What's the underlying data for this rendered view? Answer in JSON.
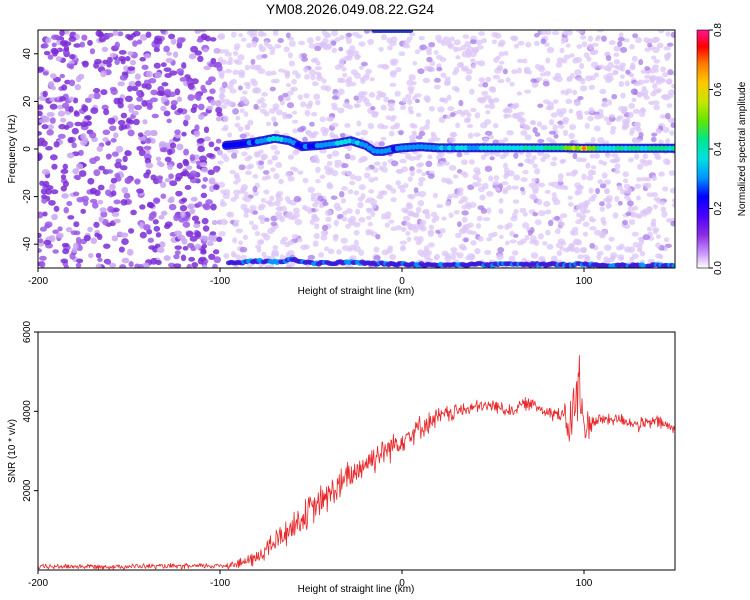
{
  "colors": {
    "background": "#ffffff",
    "axis": "#000000",
    "snr_line": "#e8282a",
    "colormap": [
      "#ffffff",
      "#cc99ff",
      "#8a2be2",
      "#4b00ff",
      "#0000ff",
      "#0096ff",
      "#00e0e0",
      "#00e68c",
      "#64e600",
      "#c8e600",
      "#ffc800",
      "#ff7800",
      "#ff0000",
      "#ff1493"
    ]
  },
  "chart_data": [
    {
      "type": "heatmap",
      "title": "YM08.2026.049.08.22.G24",
      "xlabel": "Height of straight line (km)",
      "ylabel": "Frequency (Hz)",
      "xlim": [
        -200,
        150
      ],
      "ylim": [
        -50,
        50
      ],
      "xticks": [
        "-200",
        "-100",
        "0",
        "100"
      ],
      "yticks": [
        "-40",
        "-20",
        "0",
        "20",
        "40"
      ],
      "colorbar": {
        "label": "Normalized spectral amplitude",
        "range": [
          0.0,
          0.8
        ],
        "ticks": [
          "0.0",
          "0.2",
          "0.4",
          "0.6",
          "0.8"
        ]
      },
      "signal_track": {
        "x": [
          -97,
          -90,
          -80,
          -70,
          -62,
          -55,
          -45,
          -35,
          -28,
          -20,
          -15,
          -10,
          -5,
          0,
          10,
          20,
          30,
          40,
          50,
          60,
          70,
          80,
          90,
          100,
          110,
          120,
          130,
          140,
          150
        ],
        "y": [
          1.5,
          2,
          3,
          4.5,
          3.5,
          1,
          1.5,
          2.5,
          3.5,
          1.5,
          -1,
          -1,
          0,
          0.5,
          1,
          0.5,
          0.5,
          0.5,
          0.5,
          0.5,
          0.5,
          0.5,
          0.5,
          0.3,
          0.3,
          0.3,
          0.3,
          0.3,
          0.3
        ],
        "amplitude": [
          0.25,
          0.25,
          0.3,
          0.35,
          0.3,
          0.25,
          0.3,
          0.35,
          0.35,
          0.3,
          0.3,
          0.3,
          0.3,
          0.3,
          0.3,
          0.35,
          0.35,
          0.35,
          0.35,
          0.38,
          0.38,
          0.4,
          0.45,
          0.55,
          0.4,
          0.4,
          0.4,
          0.4,
          0.4
        ]
      },
      "alias_track": {
        "x": [
          -95,
          -80,
          -70,
          -60,
          -50,
          -40,
          -30,
          0,
          20,
          40,
          60,
          80,
          100,
          120,
          150
        ],
        "y": [
          -48,
          -47,
          -47.5,
          -46.5,
          -48,
          -48,
          -47.5,
          -48.5,
          -48.5,
          -48.5,
          -48.5,
          -48.5,
          -48.5,
          -49,
          -49
        ]
      },
      "noise_transition_x": -100
    },
    {
      "type": "line",
      "xlabel": "Height of straight line (km)",
      "ylabel": "SNR (10 * v/v)",
      "xlim": [
        -200,
        150
      ],
      "ylim": [
        0,
        6000
      ],
      "xticks": [
        "-200",
        "-100",
        "0",
        "100"
      ],
      "yticks": [
        "2000",
        "4000",
        "6000"
      ],
      "series": [
        {
          "name": "SNR",
          "x": [
            -200,
            -180,
            -160,
            -140,
            -120,
            -100,
            -90,
            -80,
            -70,
            -60,
            -50,
            -40,
            -30,
            -20,
            -10,
            0,
            10,
            20,
            30,
            40,
            50,
            60,
            65,
            70,
            80,
            88,
            92,
            95,
            97,
            100,
            105,
            110,
            120,
            130,
            140,
            150
          ],
          "y": [
            80,
            90,
            85,
            95,
            90,
            110,
            150,
            300,
            700,
            1100,
            1500,
            1900,
            2300,
            2700,
            3000,
            3300,
            3600,
            3850,
            4000,
            4100,
            4150,
            4000,
            4150,
            4200,
            4000,
            3900,
            3600,
            4200,
            4600,
            3600,
            3750,
            3800,
            3800,
            3650,
            3750,
            3550
          ],
          "spread": [
            80,
            80,
            80,
            80,
            80,
            90,
            150,
            250,
            400,
            450,
            500,
            500,
            500,
            450,
            450,
            400,
            350,
            300,
            250,
            200,
            200,
            200,
            200,
            200,
            200,
            300,
            700,
            1000,
            1400,
            700,
            250,
            200,
            200,
            200,
            200,
            200
          ]
        }
      ]
    }
  ]
}
